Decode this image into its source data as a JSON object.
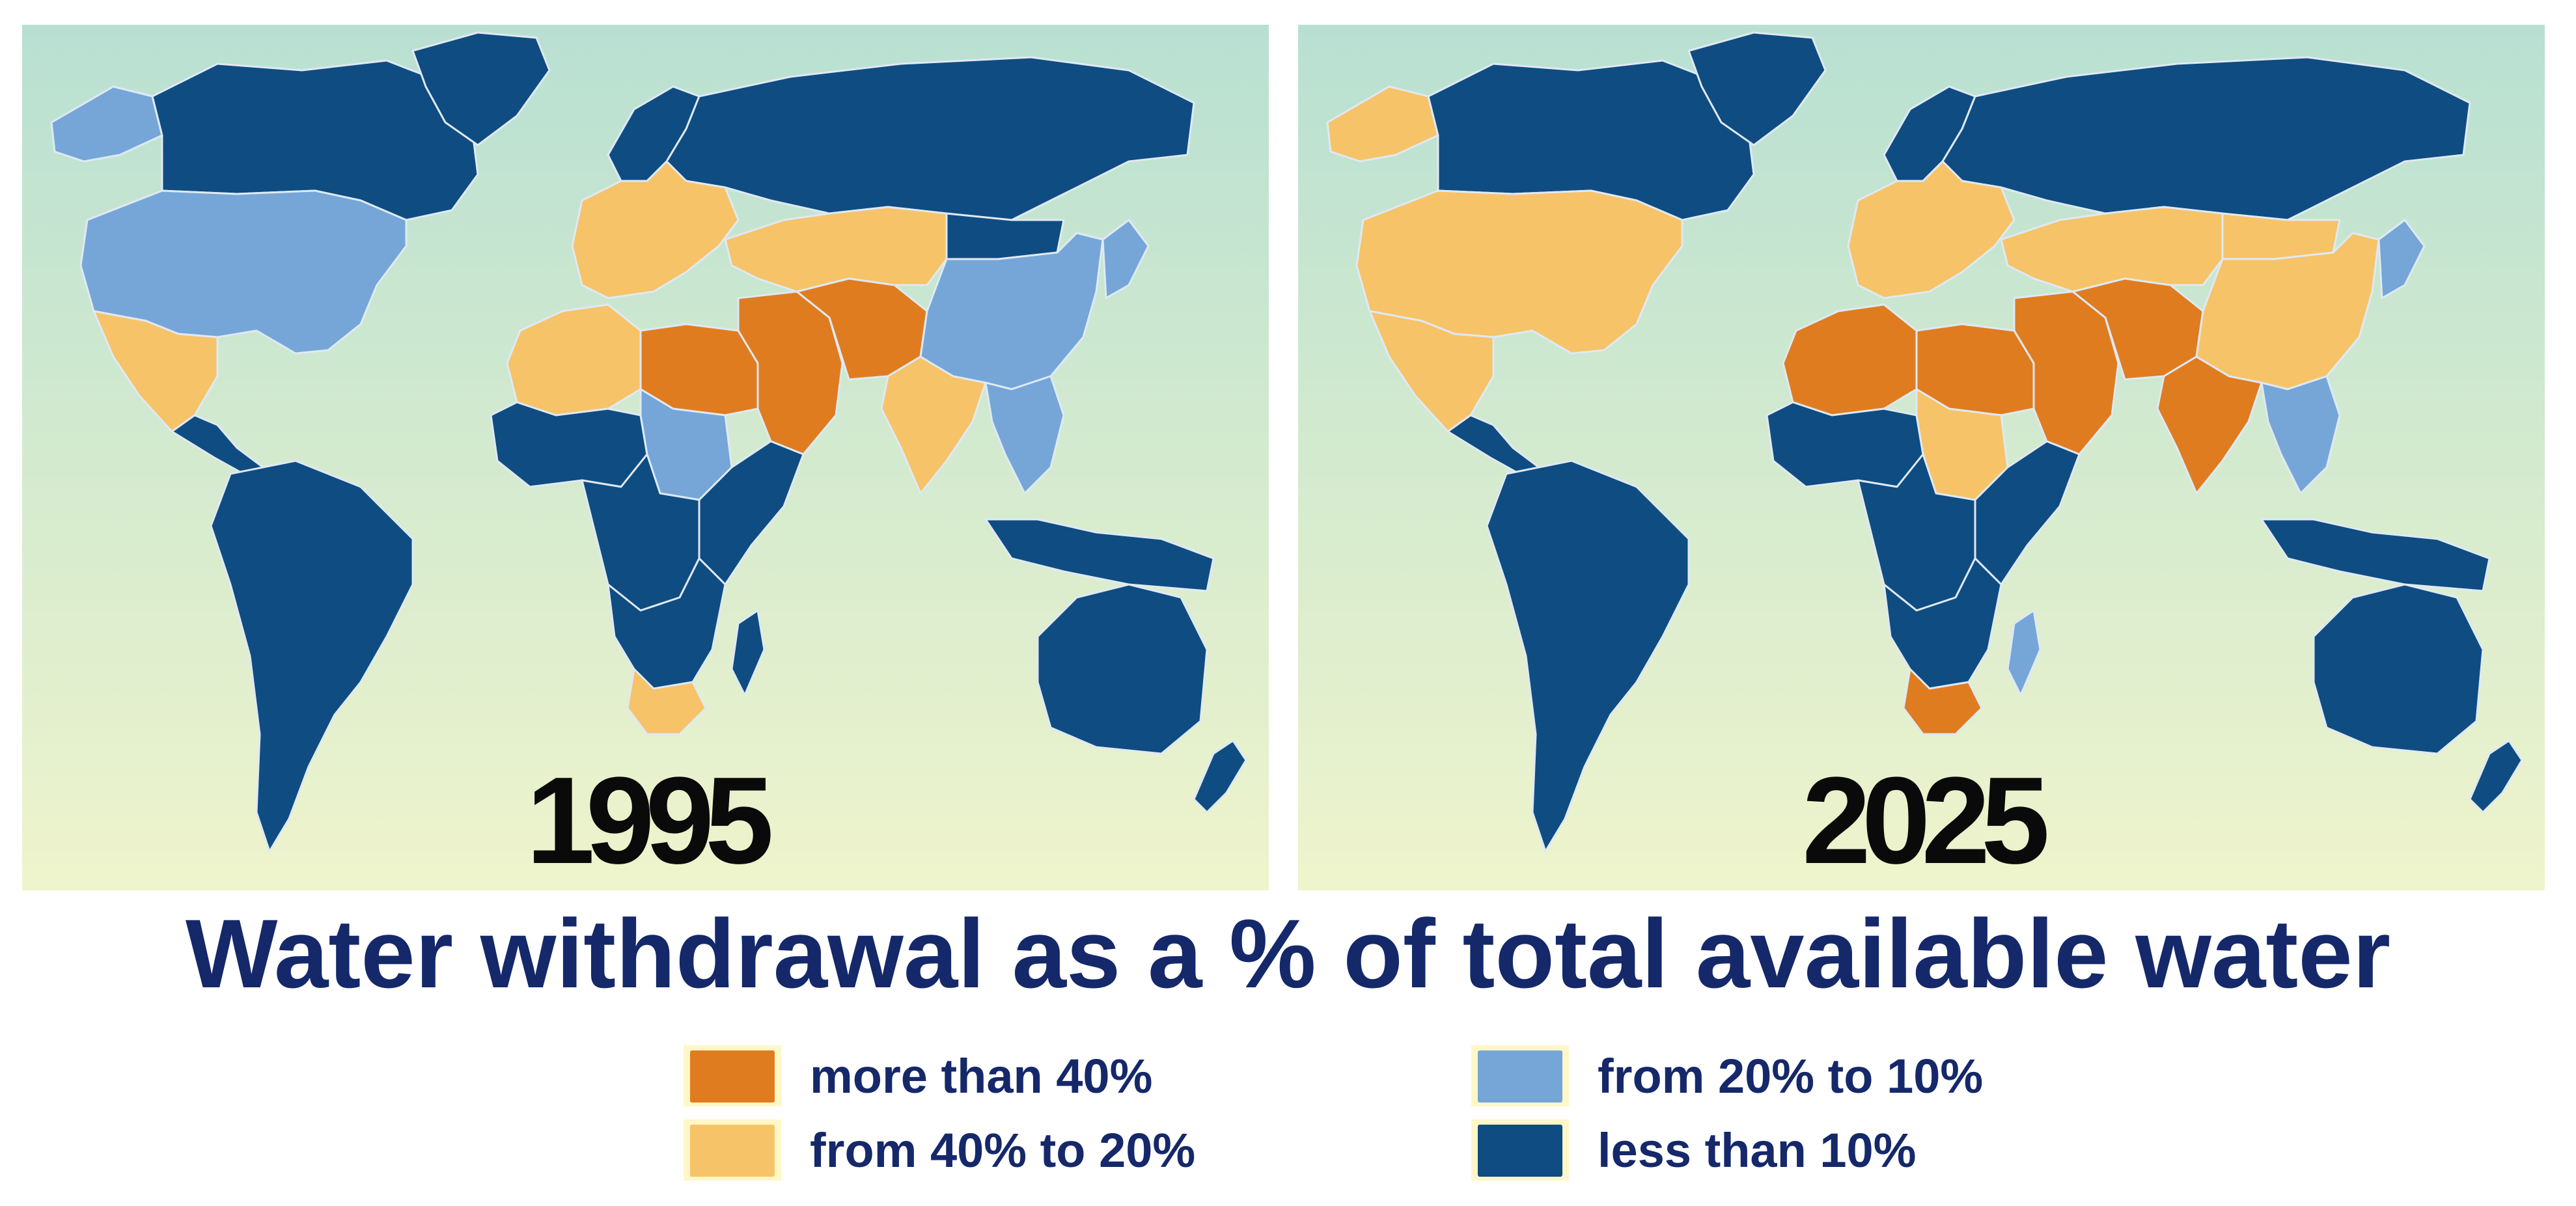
{
  "maps": [
    {
      "year": "1995",
      "regions": {
        "greenland": "less_than_10",
        "canada": "less_than_10",
        "alaska": "from_20_to_10",
        "usa": "from_20_to_10",
        "mexico": "from_40_to_20",
        "central_america": "less_than_10",
        "south_america": "less_than_10",
        "russia": "less_than_10",
        "scandinavia": "less_than_10",
        "europe": "from_40_to_20",
        "north_africa_west": "from_40_to_20",
        "libya_egypt": "more_than_40",
        "middle_east": "more_than_40",
        "iran_pakistan": "more_than_40",
        "central_asia": "from_40_to_20",
        "india": "from_40_to_20",
        "china": "from_20_to_10",
        "mongolia": "less_than_10",
        "korea_japan": "from_20_to_10",
        "southeast_asia": "from_20_to_10",
        "west_africa": "less_than_10",
        "central_africa": "less_than_10",
        "east_africa": "less_than_10",
        "sudan": "from_20_to_10",
        "southern_africa": "less_than_10",
        "south_africa": "from_40_to_20",
        "madagascar": "less_than_10",
        "indonesia": "less_than_10",
        "australia": "less_than_10",
        "new_zealand": "less_than_10"
      }
    },
    {
      "year": "2025",
      "regions": {
        "greenland": "less_than_10",
        "canada": "less_than_10",
        "alaska": "from_40_to_20",
        "usa": "from_40_to_20",
        "mexico": "from_40_to_20",
        "central_america": "less_than_10",
        "south_america": "less_than_10",
        "russia": "less_than_10",
        "scandinavia": "less_than_10",
        "europe": "from_40_to_20",
        "north_africa_west": "more_than_40",
        "libya_egypt": "more_than_40",
        "middle_east": "more_than_40",
        "iran_pakistan": "more_than_40",
        "central_asia": "from_40_to_20",
        "india": "more_than_40",
        "china": "from_40_to_20",
        "mongolia": "from_40_to_20",
        "korea_japan": "from_20_to_10",
        "southeast_asia": "from_20_to_10",
        "west_africa": "less_than_10",
        "central_africa": "less_than_10",
        "east_africa": "less_than_10",
        "sudan": "from_40_to_20",
        "southern_africa": "less_than_10",
        "south_africa": "more_than_40",
        "madagascar": "from_20_to_10",
        "indonesia": "less_than_10",
        "australia": "less_than_10",
        "new_zealand": "less_than_10"
      }
    }
  ],
  "title": "Water withdrawal as a % of total available water",
  "legend": [
    {
      "key": "more_than_40",
      "label": "more than 40%",
      "color": "#e07c20"
    },
    {
      "key": "from_40_to_20",
      "label": "from 40% to 20%",
      "color": "#f7c368"
    },
    {
      "key": "from_20_to_10",
      "label": "from 20% to 10%",
      "color": "#76a6d8"
    },
    {
      "key": "less_than_10",
      "label": "less than 10%",
      "color": "#0f4c81"
    }
  ],
  "background": {
    "top": "#b8e0d2",
    "bottom": "#eff4cc"
  },
  "border_color": "#dfe9f3"
}
